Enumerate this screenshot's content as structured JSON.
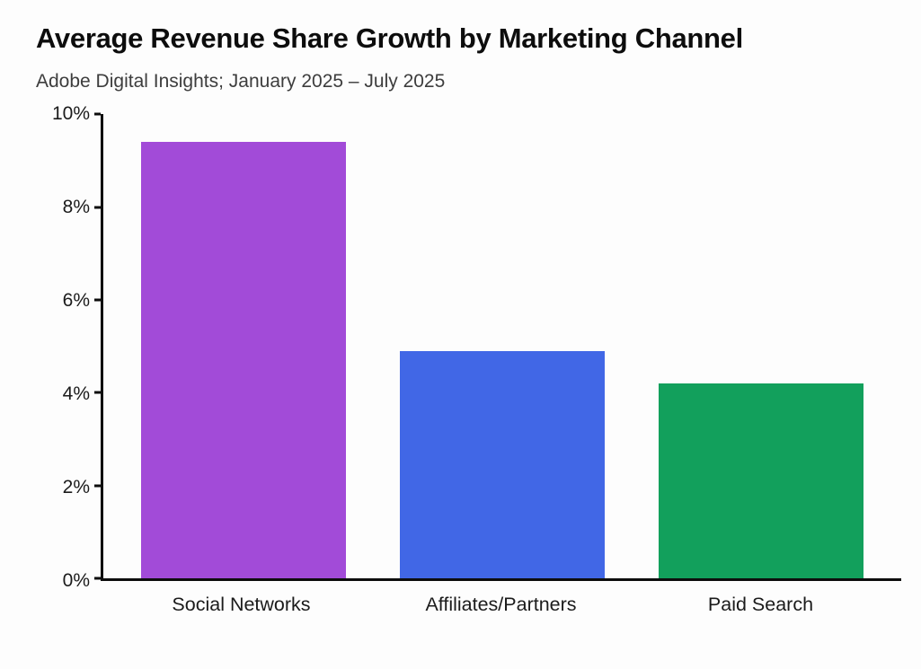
{
  "chart_data": {
    "type": "bar",
    "title": "Average Revenue Share Growth by Marketing Channel",
    "subtitle": "Adobe Digital Insights; January 2025 – July 2025",
    "categories": [
      "Social Networks",
      "Affiliates/Partners",
      "Paid Search"
    ],
    "values": [
      9.4,
      4.9,
      4.2
    ],
    "bar_colors": [
      "#a24bd8",
      "#4167e6",
      "#12a05c"
    ],
    "ylim": [
      0,
      10
    ],
    "yticks": [
      0,
      2,
      4,
      6,
      8,
      10
    ],
    "ytick_suffix": "%",
    "xlabel": "",
    "ylabel": "",
    "grid": false,
    "legend": false,
    "axis_color": "#0d0d0d",
    "background_color": "#fdfdfd"
  }
}
